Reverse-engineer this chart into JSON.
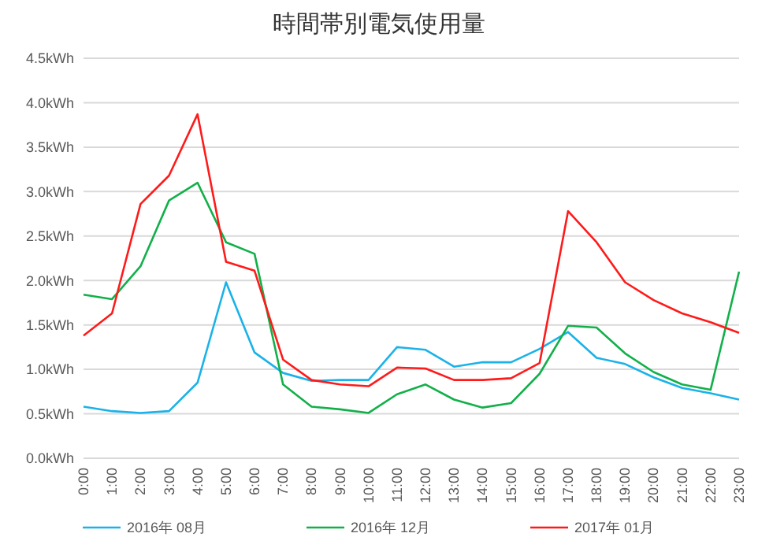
{
  "chart_data": {
    "type": "line",
    "title": "時間帯別電気使用量",
    "categories": [
      "0:00",
      "1:00",
      "2:00",
      "3:00",
      "4:00",
      "5:00",
      "6:00",
      "7:00",
      "8:00",
      "9:00",
      "10:00",
      "11:00",
      "12:00",
      "13:00",
      "14:00",
      "15:00",
      "16:00",
      "17:00",
      "18:00",
      "19:00",
      "20:00",
      "21:00",
      "22:00",
      "23:00"
    ],
    "series": [
      {
        "name": "2016年 08月",
        "color": "#1ab2e8",
        "values": [
          0.58,
          0.53,
          0.51,
          0.53,
          0.85,
          1.98,
          1.19,
          0.96,
          0.87,
          0.88,
          0.88,
          1.25,
          1.22,
          1.03,
          1.08,
          1.08,
          1.23,
          1.42,
          1.13,
          1.06,
          0.91,
          0.79,
          0.73,
          0.66
        ]
      },
      {
        "name": "2016年 12月",
        "color": "#12b04a",
        "values": [
          1.84,
          1.79,
          2.16,
          2.9,
          3.1,
          2.43,
          2.3,
          0.83,
          0.58,
          0.55,
          0.51,
          0.72,
          0.83,
          0.66,
          0.57,
          0.62,
          0.95,
          1.49,
          1.47,
          1.18,
          0.97,
          0.83,
          0.77,
          2.1
        ]
      },
      {
        "name": "2017年 01月",
        "color": "#ff1a1a",
        "values": [
          1.38,
          1.63,
          2.86,
          3.18,
          3.87,
          2.21,
          2.11,
          1.11,
          0.88,
          0.83,
          0.81,
          1.02,
          1.01,
          0.88,
          0.88,
          0.9,
          1.07,
          2.78,
          2.43,
          1.98,
          1.78,
          1.63,
          1.53,
          1.41
        ]
      }
    ],
    "ylim": [
      0,
      4.5
    ],
    "yticks": [
      {
        "value": 0,
        "label": "0.0kWh"
      },
      {
        "value": 0.5,
        "label": "0.5kWh"
      },
      {
        "value": 1,
        "label": "1.0kWh"
      },
      {
        "value": 1.5,
        "label": "1.5kWh"
      },
      {
        "value": 2,
        "label": "2.0kWh"
      },
      {
        "value": 2.5,
        "label": "2.5kWh"
      },
      {
        "value": 3,
        "label": "3.0kWh"
      },
      {
        "value": 3.5,
        "label": "3.5kWh"
      },
      {
        "value": 4,
        "label": "4.0kWh"
      },
      {
        "value": 4.5,
        "label": "4.5kWh"
      }
    ],
    "grid": "y",
    "legend": "bottom",
    "marker": "none",
    "line_style": "solid"
  }
}
